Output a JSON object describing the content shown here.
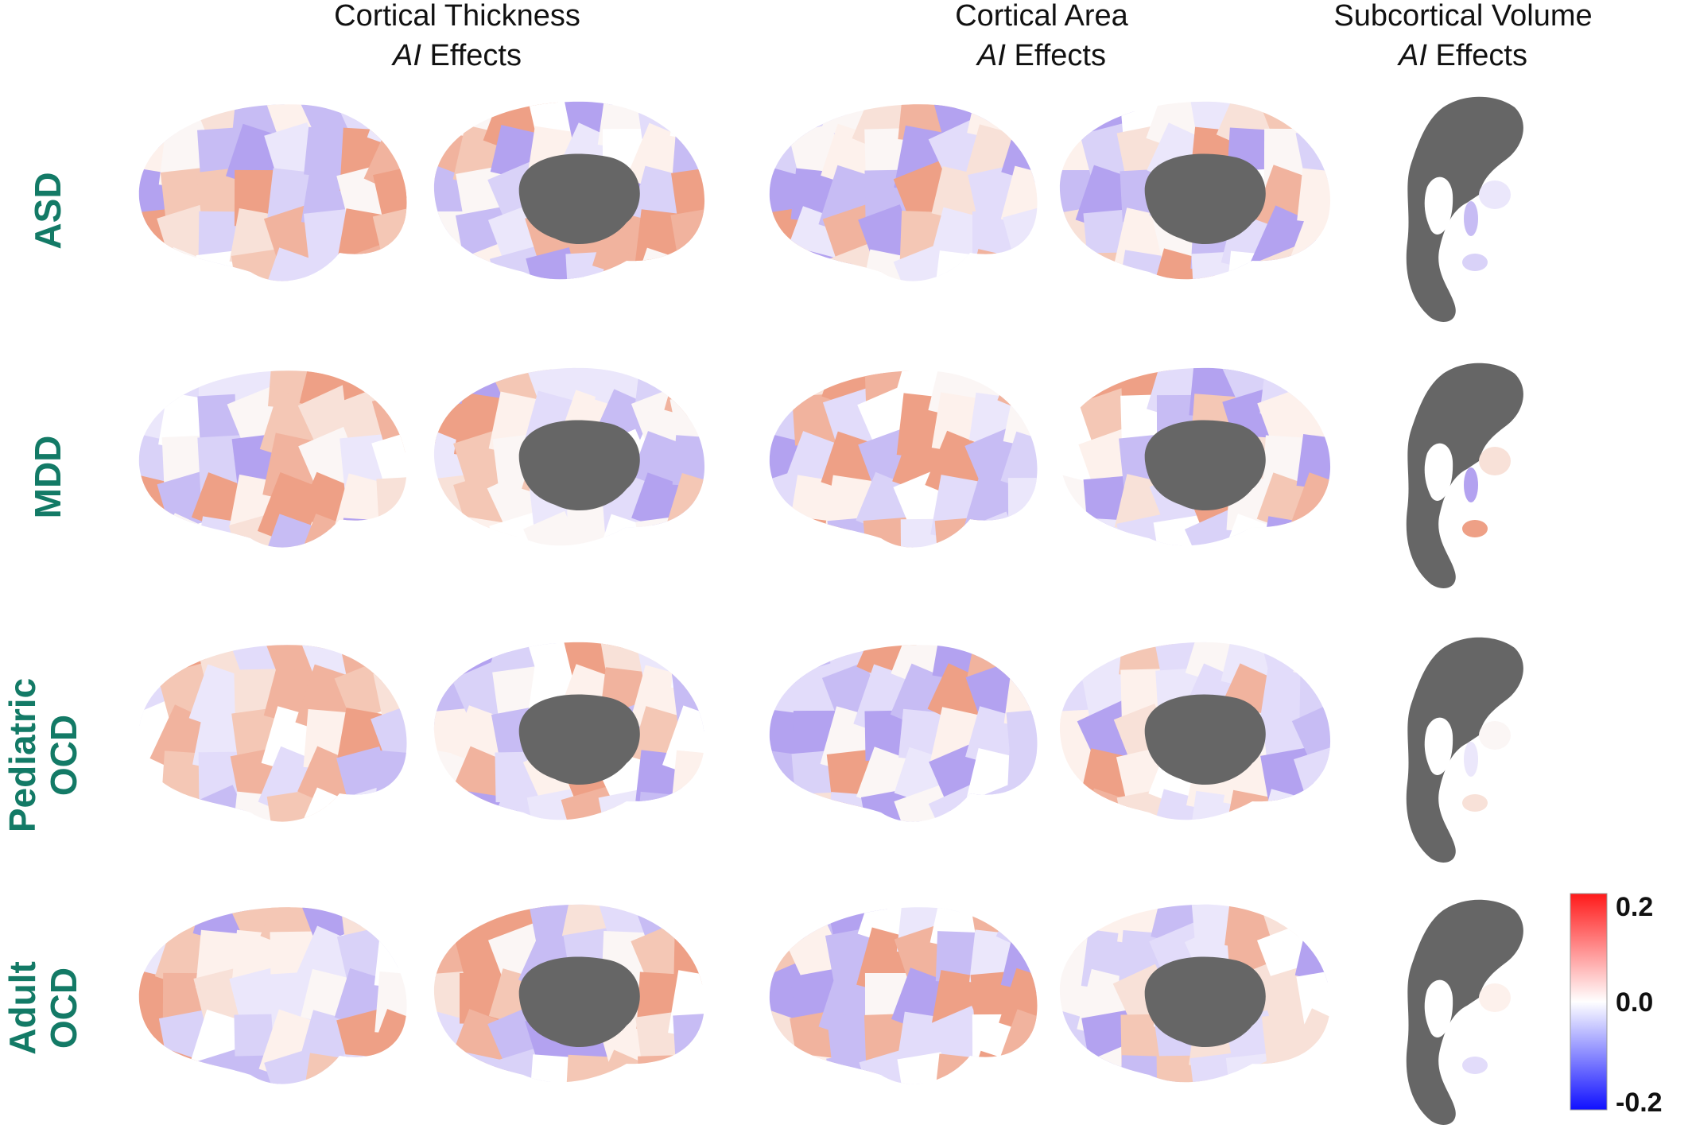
{
  "headers": [
    {
      "title": "Cortical Thickness",
      "italic": "AI",
      "rest": "Effects"
    },
    {
      "title": "Cortical Area",
      "italic": "AI",
      "rest": "Effects"
    },
    {
      "title": "Subcortical Volume",
      "italic": "AI",
      "rest": "Effects"
    }
  ],
  "rows": [
    {
      "lines": [
        "ASD"
      ]
    },
    {
      "lines": [
        "MDD"
      ]
    },
    {
      "lines": [
        "Pediatric",
        "OCD"
      ]
    },
    {
      "lines": [
        "Adult",
        "OCD"
      ]
    }
  ],
  "colorbar": {
    "labels": [
      "0.2",
      "0.0",
      "-0.2"
    ]
  }
}
